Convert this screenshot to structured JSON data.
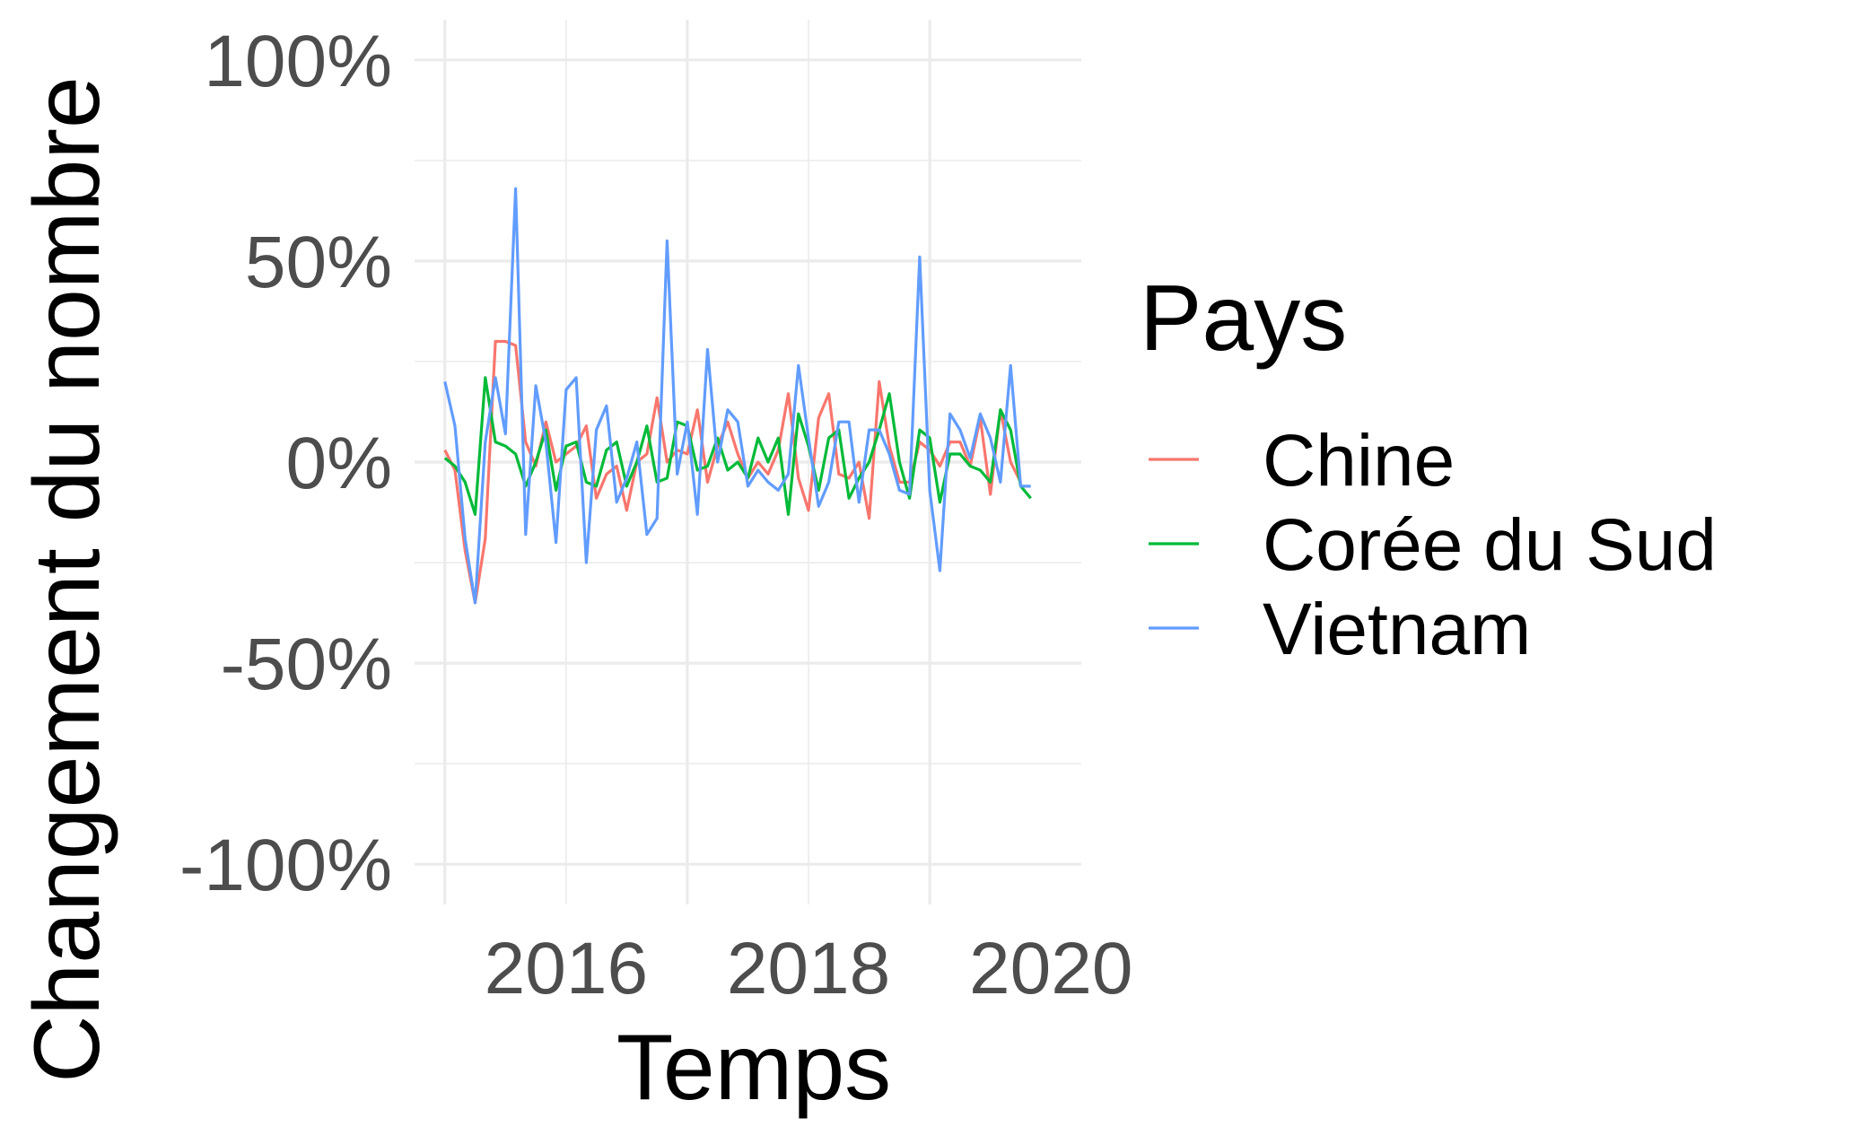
{
  "chart_data": {
    "type": "line",
    "xlabel": "Temps",
    "ylabel": "Changement du nombre",
    "x_ticks": [
      "2016",
      "2018",
      "2020"
    ],
    "y_ticks": [
      "-100%",
      "-50%",
      "0%",
      "50%",
      "100%"
    ],
    "xlim": [
      2015.0,
      2020.0
    ],
    "ylim": [
      -1.0,
      1.0
    ],
    "grid": true,
    "legend": {
      "title": "Pays",
      "position": "right"
    },
    "x_start": "2015-01",
    "x_frequency": "monthly",
    "series": [
      {
        "name": "Chine",
        "color": "#F8766D",
        "values": [
          0.03,
          -0.02,
          -0.22,
          -0.35,
          -0.19,
          0.3,
          0.3,
          0.29,
          0.05,
          -0.01,
          0.1,
          0.0,
          0.02,
          0.04,
          0.09,
          -0.09,
          -0.03,
          -0.01,
          -0.12,
          0.0,
          0.02,
          0.16,
          0.0,
          0.03,
          0.02,
          0.13,
          -0.05,
          0.04,
          0.1,
          0.02,
          -0.04,
          0.0,
          -0.03,
          0.03,
          0.17,
          -0.04,
          -0.12,
          0.11,
          0.17,
          -0.03,
          -0.04,
          0.0,
          -0.14,
          0.2,
          0.04,
          -0.05,
          -0.05,
          0.05,
          0.03,
          -0.01,
          0.05,
          0.05,
          -0.01,
          0.11,
          -0.08,
          0.13,
          0.0,
          -0.05
        ]
      },
      {
        "name": "Corée du Sud",
        "color": "#00BA38",
        "values": [
          0.01,
          -0.01,
          -0.05,
          -0.13,
          0.21,
          0.05,
          0.04,
          0.02,
          -0.06,
          0.0,
          0.08,
          -0.07,
          0.04,
          0.05,
          -0.05,
          -0.06,
          0.03,
          0.05,
          -0.06,
          0.0,
          0.09,
          -0.05,
          -0.04,
          0.1,
          0.09,
          -0.02,
          -0.01,
          0.06,
          -0.02,
          0.0,
          -0.04,
          0.06,
          0.0,
          0.06,
          -0.13,
          0.12,
          0.04,
          -0.07,
          0.06,
          0.08,
          -0.09,
          -0.04,
          0.0,
          0.08,
          0.17,
          0.0,
          -0.09,
          0.08,
          0.06,
          -0.1,
          0.02,
          0.02,
          -0.01,
          -0.02,
          -0.05,
          0.13,
          0.08,
          -0.06,
          -0.09
        ]
      },
      {
        "name": "Vietnam",
        "color": "#619CFF",
        "values": [
          0.2,
          0.09,
          -0.19,
          -0.35,
          0.05,
          0.21,
          0.07,
          0.68,
          -0.18,
          0.19,
          0.05,
          -0.2,
          0.18,
          0.21,
          -0.25,
          0.08,
          0.14,
          -0.1,
          -0.04,
          0.05,
          -0.18,
          -0.14,
          0.55,
          -0.03,
          0.1,
          -0.13,
          0.28,
          0.0,
          0.13,
          0.1,
          -0.06,
          -0.02,
          -0.05,
          -0.07,
          -0.03,
          0.24,
          0.06,
          -0.11,
          -0.05,
          0.1,
          0.1,
          -0.1,
          0.08,
          0.08,
          0.02,
          -0.07,
          -0.08,
          0.51,
          -0.07,
          -0.27,
          0.12,
          0.08,
          0.01,
          0.12,
          0.06,
          -0.05,
          0.24,
          -0.06,
          -0.06
        ]
      }
    ]
  }
}
